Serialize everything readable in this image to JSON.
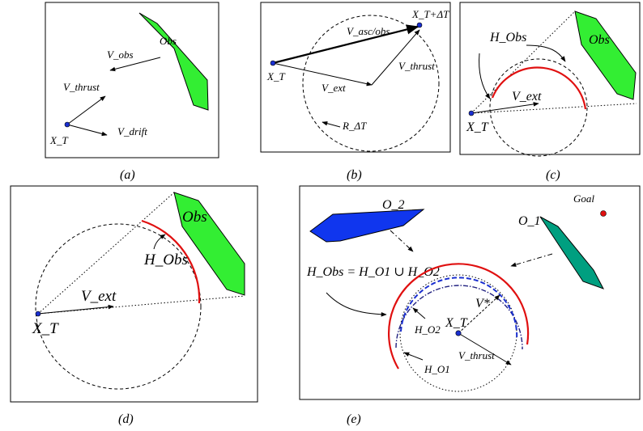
{
  "captions": {
    "a": "(a)",
    "b": "(b)",
    "c": "(c)",
    "d": "(d)",
    "e": "(e)"
  },
  "panel_a": {
    "obs": "Obs",
    "v_obs": "V_obs",
    "v_thrust": "V_thrust",
    "x_t": "X_T",
    "v_drift": "V_drift"
  },
  "panel_b": {
    "x_t_dt": "X_T+ΔT",
    "v_asc_obs": "V_asc/obs",
    "x_t": "X_T",
    "v_ext": "V_ext",
    "v_thrust": "V_thrust",
    "r_dt": "R_ΔT"
  },
  "panel_c": {
    "h_obs": "H_Obs",
    "obs": "Obs",
    "v_ext": "V_ext",
    "x_t": "X_T"
  },
  "panel_d": {
    "obs": "Obs",
    "h_obs": "H_Obs",
    "v_ext": "V_ext",
    "x_t": "X_T"
  },
  "panel_e": {
    "o2": "O_2",
    "goal": "Goal",
    "o1": "O_1",
    "h_obs_eq": "H_Obs = H_O1 ∪ H_O2",
    "v_star": "V*",
    "x_t": "X_T",
    "h_o2": "H_O2",
    "v_thrust": "V_thrust",
    "h_o1": "H_O1"
  },
  "colors": {
    "obstacle_green": "#33ee33",
    "obstacle_blue": "#1036ee",
    "obstacle_teal": "#009f80",
    "hull_red": "#e01010",
    "point_blue": "#1a2fd0",
    "goal_red": "#e01010"
  }
}
